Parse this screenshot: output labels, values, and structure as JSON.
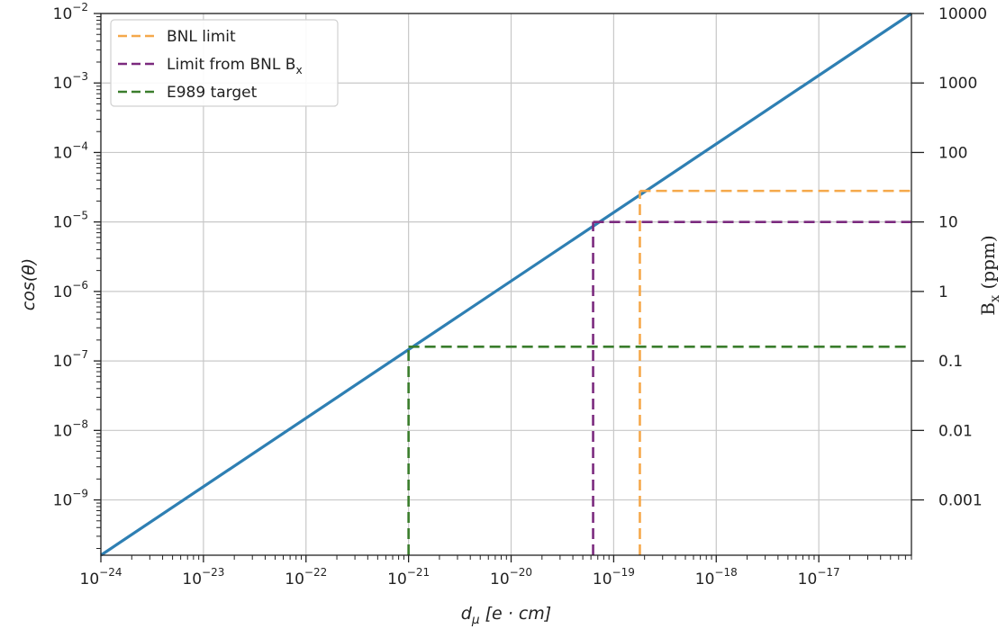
{
  "chart_data": {
    "type": "line",
    "title": "",
    "xlabel": "d_μ [e · cm]",
    "ylabel": "cos(θ)",
    "y2label": "B_x (ppm)",
    "xscale": "log",
    "yscale": "log",
    "xlim": [
      1e-24,
      8e-17
    ],
    "ylim": [
      1.6e-10,
      0.01
    ],
    "grid": true,
    "legend_position": "top-left",
    "x_ticks": [
      {
        "value": 1e-24,
        "base": "10",
        "exp": "−24"
      },
      {
        "value": 1e-23,
        "base": "10",
        "exp": "−23"
      },
      {
        "value": 1e-22,
        "base": "10",
        "exp": "−22"
      },
      {
        "value": 1e-21,
        "base": "10",
        "exp": "−21"
      },
      {
        "value": 1e-20,
        "base": "10",
        "exp": "−20"
      },
      {
        "value": 1e-19,
        "base": "10",
        "exp": "−19"
      },
      {
        "value": 1e-18,
        "base": "10",
        "exp": "−18"
      },
      {
        "value": 1e-17,
        "base": "10",
        "exp": "−17"
      }
    ],
    "y_ticks": [
      {
        "value": 1e-09,
        "base": "10",
        "exp": "−9"
      },
      {
        "value": 1e-08,
        "base": "10",
        "exp": "−8"
      },
      {
        "value": 1e-07,
        "base": "10",
        "exp": "−7"
      },
      {
        "value": 1e-06,
        "base": "10",
        "exp": "−6"
      },
      {
        "value": 1e-05,
        "base": "10",
        "exp": "−5"
      },
      {
        "value": 0.0001,
        "base": "10",
        "exp": "−4"
      },
      {
        "value": 0.001,
        "base": "10",
        "exp": "−3"
      },
      {
        "value": 0.01,
        "base": "10",
        "exp": "−2"
      }
    ],
    "y2_ticks": [
      {
        "value": 1e-09,
        "label": "0.001"
      },
      {
        "value": 1e-08,
        "label": "0.01"
      },
      {
        "value": 1e-07,
        "label": "0.1"
      },
      {
        "value": 1e-06,
        "label": "1"
      },
      {
        "value": 1e-05,
        "label": "10"
      },
      {
        "value": 0.0001,
        "label": "100"
      },
      {
        "value": 0.001,
        "label": "1000"
      },
      {
        "value": 0.01,
        "label": "10000"
      }
    ],
    "series": [
      {
        "name": "",
        "style": "solid",
        "color": "#2e7fb3",
        "x": [
          1e-24,
          8e-17
        ],
        "y": [
          1.6e-10,
          0.01
        ]
      },
      {
        "name": "BNL limit",
        "style": "dashed",
        "color": "#f5a84a",
        "x_at": 1.8e-19,
        "y_at": 2.8e-05
      },
      {
        "name": "Limit from BNL B_x",
        "style": "dashed",
        "color": "#7b2a7e",
        "x_at": 6.3e-20,
        "y_at": 1e-05
      },
      {
        "name": "E989 target",
        "style": "dashed",
        "color": "#3a7d2c",
        "x_at": 1e-21,
        "y_at": 1.6e-07
      }
    ]
  }
}
